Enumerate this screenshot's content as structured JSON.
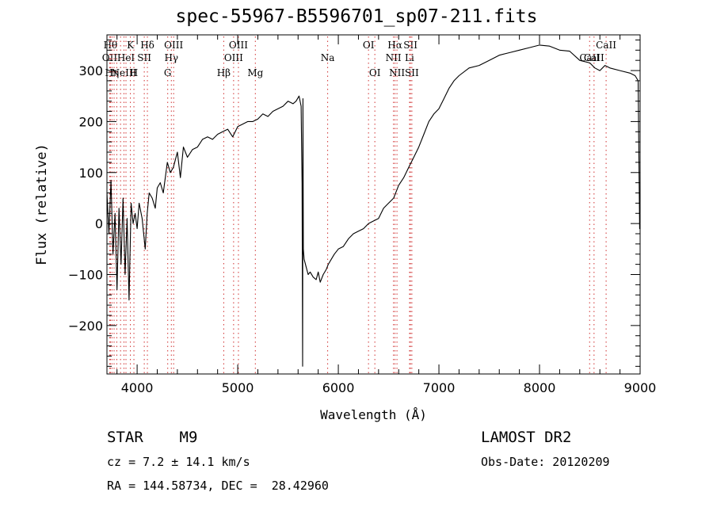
{
  "chart_data": {
    "type": "line",
    "title": "spec-55967-B5596701_sp07-211.fits",
    "xlabel": "Wavelength (Å)",
    "ylabel": "Flux (relative)",
    "xlim": [
      3700,
      9000
    ],
    "ylim": [
      -295,
      370
    ],
    "xticks": [
      4000,
      5000,
      6000,
      7000,
      8000,
      9000
    ],
    "yticks": [
      -200,
      -100,
      0,
      100,
      200,
      300
    ],
    "ytick_labels": [
      "−200",
      "−100",
      "0",
      "100",
      "200",
      "300"
    ],
    "grid": false,
    "series": [
      {
        "x": [
          3700,
          3720,
          3740,
          3760,
          3780,
          3800,
          3820,
          3840,
          3860,
          3880,
          3900,
          3920,
          3940,
          3960,
          3980,
          4000,
          4020,
          4050,
          4080,
          4100,
          4120,
          4150,
          4180,
          4200,
          4230,
          4260,
          4300,
          4330,
          4360,
          4400,
          4430,
          4460,
          4500,
          4550,
          4600,
          4650,
          4700,
          4750,
          4800,
          4850,
          4900,
          4950,
          5000,
          5050,
          5100,
          5150,
          5200,
          5250,
          5300,
          5350,
          5400,
          5450,
          5500,
          5550,
          5580,
          5610,
          5630,
          5640,
          5645,
          5648,
          5652,
          5660,
          5680,
          5700,
          5720,
          5750,
          5780,
          5800,
          5820,
          5850,
          5880,
          5900,
          5930,
          5960,
          6000,
          6050,
          6100,
          6150,
          6200,
          6250,
          6300,
          6350,
          6400,
          6450,
          6500,
          6550,
          6600,
          6650,
          6700,
          6750,
          6800,
          6850,
          6900,
          6950,
          7000,
          7050,
          7100,
          7150,
          7200,
          7300,
          7400,
          7500,
          7600,
          7700,
          7800,
          7900,
          8000,
          8100,
          8200,
          8300,
          8400,
          8500,
          8550,
          8600,
          8650,
          8700,
          8800,
          8900,
          8950,
          8980,
          8995,
          9000
        ],
        "y": [
          60,
          -20,
          85,
          -60,
          20,
          -130,
          30,
          -80,
          50,
          -100,
          10,
          -150,
          40,
          0,
          20,
          -10,
          40,
          10,
          -50,
          20,
          60,
          50,
          30,
          70,
          80,
          60,
          120,
          100,
          110,
          140,
          90,
          150,
          130,
          145,
          150,
          165,
          170,
          165,
          175,
          180,
          185,
          170,
          190,
          195,
          200,
          200,
          205,
          215,
          210,
          220,
          225,
          230,
          240,
          235,
          240,
          250,
          230,
          80,
          -280,
          245,
          -50,
          -70,
          -85,
          -100,
          -95,
          -105,
          -110,
          -95,
          -115,
          -100,
          -90,
          -80,
          -70,
          -60,
          -50,
          -45,
          -30,
          -20,
          -15,
          -10,
          0,
          5,
          10,
          30,
          40,
          50,
          75,
          90,
          110,
          130,
          150,
          175,
          200,
          215,
          225,
          245,
          265,
          280,
          290,
          305,
          310,
          320,
          330,
          335,
          340,
          345,
          350,
          348,
          340,
          338,
          320,
          315,
          305,
          300,
          310,
          305,
          300,
          295,
          290,
          280,
          -10,
          -10
        ]
      }
    ],
    "lines": [
      {
        "x": 3735,
        "label": "Hθ",
        "row": 1
      },
      {
        "x": 3727,
        "label": "OII",
        "row": 2
      },
      {
        "x": 3750,
        "label": "Hη",
        "row": 3
      },
      {
        "x": 3771,
        "label": "",
        "row": 0
      },
      {
        "x": 3798,
        "label": "",
        "row": 0
      },
      {
        "x": 3835,
        "label": "",
        "row": 0
      },
      {
        "x": 3869,
        "label": "NeIII",
        "row": 3
      },
      {
        "x": 3889,
        "label": "HeI",
        "row": 2
      },
      {
        "x": 3933,
        "label": "K",
        "row": 1
      },
      {
        "x": 3968,
        "label": "H",
        "row": 3
      },
      {
        "x": 4071,
        "label": "SII",
        "row": 2
      },
      {
        "x": 4102,
        "label": "Hδ",
        "row": 1
      },
      {
        "x": 4304,
        "label": "G",
        "row": 3
      },
      {
        "x": 4340,
        "label": "Hγ",
        "row": 2
      },
      {
        "x": 4363,
        "label": "OIII",
        "row": 1
      },
      {
        "x": 4861,
        "label": "Hβ",
        "row": 3
      },
      {
        "x": 4959,
        "label": "OIII",
        "row": 2
      },
      {
        "x": 5007,
        "label": "OIII",
        "row": 1
      },
      {
        "x": 5175,
        "label": "Mg",
        "row": 3
      },
      {
        "x": 5894,
        "label": "Na",
        "row": 2
      },
      {
        "x": 6300,
        "label": "OI",
        "row": 1
      },
      {
        "x": 6363,
        "label": "OI",
        "row": 3
      },
      {
        "x": 6548,
        "label": "NII",
        "row": 2
      },
      {
        "x": 6563,
        "label": "Hα",
        "row": 1
      },
      {
        "x": 6583,
        "label": "NII",
        "row": 3
      },
      {
        "x": 6708,
        "label": "Li",
        "row": 2
      },
      {
        "x": 6717,
        "label": "SII",
        "row": 1
      },
      {
        "x": 6731,
        "label": "SII",
        "row": 3
      },
      {
        "x": 8498,
        "label": "CaII",
        "row": 2
      },
      {
        "x": 8542,
        "label": "CaII",
        "row": 2
      },
      {
        "x": 8662,
        "label": "CaII",
        "row": 1
      }
    ]
  },
  "info": {
    "class_line": "STAR    M9",
    "cz_line": "cz = 7.2 ± 14.1 km/s",
    "coords_line": "RA = 144.58734, DEC =  28.42960",
    "survey": "LAMOST DR2",
    "obs_date": "Obs-Date: 20120209"
  }
}
